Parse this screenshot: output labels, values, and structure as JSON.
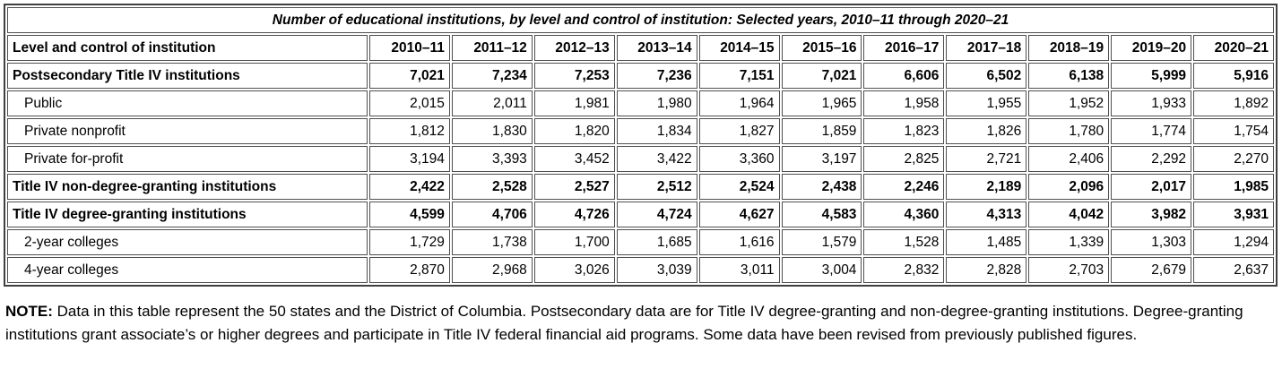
{
  "table": {
    "title": "Number of educational institutions, by level and control of institution: Selected years, 2010–11 through 2020–21",
    "header": {
      "label": "Level and control of institution",
      "years": [
        "2010–11",
        "2011–12",
        "2012–13",
        "2013–14",
        "2014–15",
        "2015–16",
        "2016–17",
        "2017–18",
        "2018–19",
        "2019–20",
        "2020–21"
      ]
    },
    "rows": [
      {
        "label": "Postsecondary Title IV institutions",
        "bold": true,
        "indent": false,
        "values": [
          "7,021",
          "7,234",
          "7,253",
          "7,236",
          "7,151",
          "7,021",
          "6,606",
          "6,502",
          "6,138",
          "5,999",
          "5,916"
        ]
      },
      {
        "label": "Public",
        "bold": false,
        "indent": true,
        "values": [
          "2,015",
          "2,011",
          "1,981",
          "1,980",
          "1,964",
          "1,965",
          "1,958",
          "1,955",
          "1,952",
          "1,933",
          "1,892"
        ]
      },
      {
        "label": "Private nonprofit",
        "bold": false,
        "indent": true,
        "values": [
          "1,812",
          "1,830",
          "1,820",
          "1,834",
          "1,827",
          "1,859",
          "1,823",
          "1,826",
          "1,780",
          "1,774",
          "1,754"
        ]
      },
      {
        "label": "Private for-profit",
        "bold": false,
        "indent": true,
        "values": [
          "3,194",
          "3,393",
          "3,452",
          "3,422",
          "3,360",
          "3,197",
          "2,825",
          "2,721",
          "2,406",
          "2,292",
          "2,270"
        ]
      },
      {
        "label": "Title IV non-degree-granting institutions",
        "bold": true,
        "indent": false,
        "values": [
          "2,422",
          "2,528",
          "2,527",
          "2,512",
          "2,524",
          "2,438",
          "2,246",
          "2,189",
          "2,096",
          "2,017",
          "1,985"
        ]
      },
      {
        "label": "Title IV degree-granting institutions",
        "bold": true,
        "indent": false,
        "values": [
          "4,599",
          "4,706",
          "4,726",
          "4,724",
          "4,627",
          "4,583",
          "4,360",
          "4,313",
          "4,042",
          "3,982",
          "3,931"
        ]
      },
      {
        "label": "2-year colleges",
        "bold": false,
        "indent": true,
        "values": [
          "1,729",
          "1,738",
          "1,700",
          "1,685",
          "1,616",
          "1,579",
          "1,528",
          "1,485",
          "1,339",
          "1,303",
          "1,294"
        ]
      },
      {
        "label": "4-year colleges",
        "bold": false,
        "indent": true,
        "values": [
          "2,870",
          "2,968",
          "3,026",
          "3,039",
          "3,011",
          "3,004",
          "2,832",
          "2,828",
          "2,703",
          "2,679",
          "2,637"
        ]
      }
    ]
  },
  "note": {
    "label": "NOTE:",
    "text": " Data in this table represent the 50 states and the District of Columbia. Postsecondary data are for Title IV degree-granting and non-degree-granting institutions. Degree-granting institutions grant associate’s or higher degrees and participate in Title IV federal financial aid programs. Some data have been revised from previously published figures."
  },
  "colors": {
    "outer_border": "#3f3f3f",
    "cell_border": "#4f4f4f",
    "background": "#ffffff",
    "text": "#000000"
  },
  "chart_data": {
    "type": "table",
    "title": "Number of educational institutions, by level and control of institution: Selected years, 2010–11 through 2020–21",
    "columns": [
      "2010–11",
      "2011–12",
      "2012–13",
      "2013–14",
      "2014–15",
      "2015–16",
      "2016–17",
      "2017–18",
      "2018–19",
      "2019–20",
      "2020–21"
    ],
    "series": [
      {
        "name": "Postsecondary Title IV institutions",
        "values": [
          7021,
          7234,
          7253,
          7236,
          7151,
          7021,
          6606,
          6502,
          6138,
          5999,
          5916
        ]
      },
      {
        "name": "Public",
        "values": [
          2015,
          2011,
          1981,
          1980,
          1964,
          1965,
          1958,
          1955,
          1952,
          1933,
          1892
        ]
      },
      {
        "name": "Private nonprofit",
        "values": [
          1812,
          1830,
          1820,
          1834,
          1827,
          1859,
          1823,
          1826,
          1780,
          1774,
          1754
        ]
      },
      {
        "name": "Private for-profit",
        "values": [
          3194,
          3393,
          3452,
          3422,
          3360,
          3197,
          2825,
          2721,
          2406,
          2292,
          2270
        ]
      },
      {
        "name": "Title IV non-degree-granting institutions",
        "values": [
          2422,
          2528,
          2527,
          2512,
          2524,
          2438,
          2246,
          2189,
          2096,
          2017,
          1985
        ]
      },
      {
        "name": "Title IV degree-granting institutions",
        "values": [
          4599,
          4706,
          4726,
          4724,
          4627,
          4583,
          4360,
          4313,
          4042,
          3982,
          3931
        ]
      },
      {
        "name": "2-year colleges",
        "values": [
          1729,
          1738,
          1700,
          1685,
          1616,
          1579,
          1528,
          1485,
          1339,
          1303,
          1294
        ]
      },
      {
        "name": "4-year colleges",
        "values": [
          2870,
          2968,
          3026,
          3039,
          3011,
          3004,
          2832,
          2828,
          2703,
          2679,
          2637
        ]
      }
    ]
  }
}
